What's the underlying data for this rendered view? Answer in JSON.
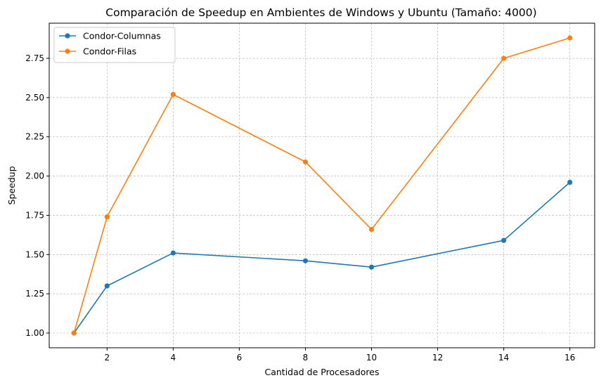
{
  "chart_data": {
    "type": "line",
    "title": "Comparación de Speedup en Ambientes de Windows y Ubuntu (Tamaño: 4000)",
    "xlabel": "Cantidad de Procesadores",
    "ylabel": "Speedup",
    "x": [
      1,
      2,
      4,
      8,
      10,
      14,
      16
    ],
    "series": [
      {
        "name": "Condor-Columnas",
        "color": "#1f77b4",
        "values": [
          1.0,
          1.3,
          1.51,
          1.46,
          1.42,
          1.59,
          1.96
        ]
      },
      {
        "name": "Condor-Filas",
        "color": "#ff7f0e",
        "values": [
          1.0,
          1.74,
          2.52,
          2.09,
          1.66,
          2.75,
          2.88
        ]
      }
    ],
    "xlim": [
      0.25,
      16.75
    ],
    "ylim": [
      0.906,
      2.974
    ],
    "xticks": [
      2,
      4,
      6,
      8,
      10,
      12,
      14,
      16
    ],
    "xtick_labels": [
      "2",
      "4",
      "6",
      "8",
      "10",
      "12",
      "14",
      "16"
    ],
    "yticks": [
      1.0,
      1.25,
      1.5,
      1.75,
      2.0,
      2.25,
      2.5,
      2.75
    ],
    "ytick_labels": [
      "1.00",
      "1.25",
      "1.50",
      "1.75",
      "2.00",
      "2.25",
      "2.50",
      "2.75"
    ],
    "grid": true,
    "legend_position": "top-left"
  }
}
